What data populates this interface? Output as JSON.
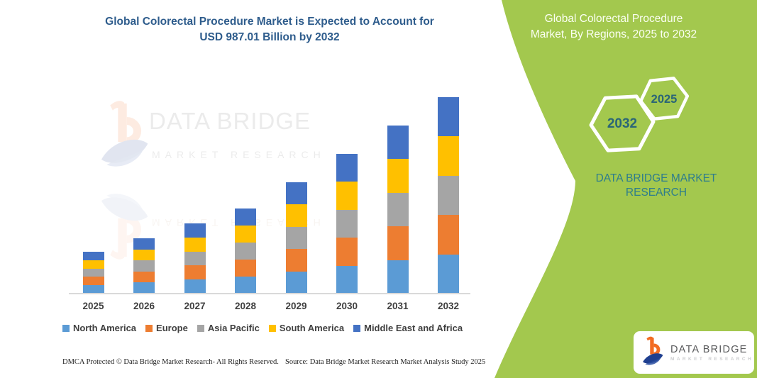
{
  "title": {
    "line1": "Global Colorectal Procedure Market is Expected to Account for",
    "line2": "USD 987.01 Billion by 2032"
  },
  "right_panel": {
    "heading_line1": "Global Colorectal Procedure",
    "heading_line2": "Market, By Regions, 2025 to 2032",
    "hexagon_back_year": "2032",
    "hexagon_front_year": "2025",
    "brand_line1": "DATA BRIDGE MARKET",
    "brand_line2": "RESEARCH",
    "logo_card": {
      "name": "DATA BRIDGE",
      "subtitle": "MARKET RESEARCH"
    }
  },
  "watermark": {
    "line1": "DATA BRIDGE",
    "line2": "MARKET RESEARCH"
  },
  "footer": {
    "left": "DMCA Protected © Data Bridge Market Research-  All Rights Reserved.",
    "right": "Source: Data Bridge Market Research  Market Analysis Study 2025"
  },
  "colors": {
    "green_panel": "#A3C84E",
    "title_blue": "#2E5C8C",
    "teal_text": "#2E7D8C",
    "hex_year_text": "#2A6577",
    "axis_label": "#3f3f3f",
    "axis_line": "#d9d9d9",
    "logo_orange": "#F26C23",
    "logo_navy": "#1F3F8F"
  },
  "chart_data": {
    "type": "bar",
    "stacked": true,
    "title": "Global Colorectal Procedure Market is Expected to Account for USD 987.01 Billion by 2032",
    "unit": "USD Billion",
    "categories": [
      "2025",
      "2026",
      "2027",
      "2028",
      "2029",
      "2030",
      "2031",
      "2032"
    ],
    "series": [
      {
        "name": "North America",
        "color": "#5B9BD5",
        "values": [
          42.0,
          55.6,
          70.5,
          85.5,
          111.9,
          140.4,
          168.9,
          197.4
        ]
      },
      {
        "name": "Europe",
        "color": "#ED7D31",
        "values": [
          42.0,
          55.6,
          70.5,
          85.5,
          111.9,
          140.4,
          168.9,
          197.4
        ]
      },
      {
        "name": "Asia Pacific",
        "color": "#A5A5A5",
        "values": [
          42.0,
          55.6,
          70.5,
          85.5,
          111.9,
          140.4,
          168.9,
          197.4
        ]
      },
      {
        "name": "South America",
        "color": "#FFC000",
        "values": [
          42.0,
          55.6,
          70.5,
          85.5,
          111.9,
          140.4,
          168.9,
          197.4
        ]
      },
      {
        "name": "Middle East and Africa",
        "color": "#4472C4",
        "values": [
          42.0,
          55.6,
          70.5,
          85.5,
          111.9,
          140.4,
          168.9,
          197.4
        ]
      }
    ],
    "totals": [
      210.0,
      278.0,
      352.5,
      427.5,
      559.5,
      702.0,
      844.5,
      987.01
    ],
    "ylim": [
      0,
      1000
    ],
    "grid": false,
    "legend_position": "bottom",
    "xlabel": "",
    "ylabel": ""
  }
}
